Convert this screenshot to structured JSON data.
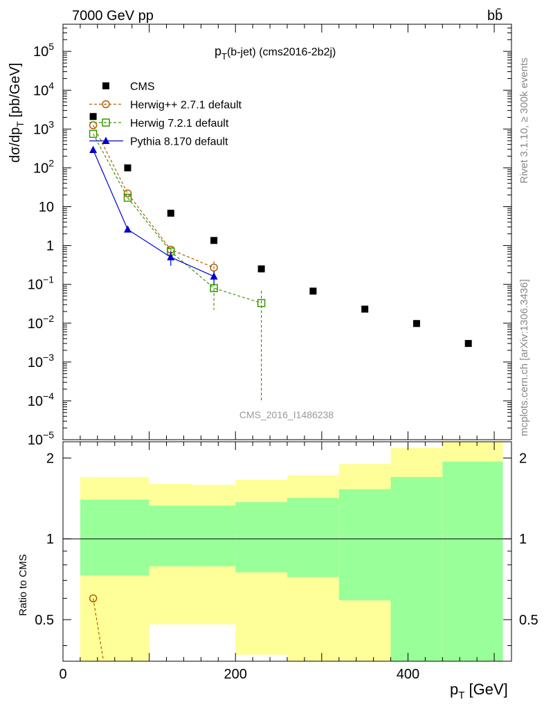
{
  "header": {
    "beam": "7000 GeV pp",
    "process": "bb̄"
  },
  "side_labels": {
    "rivet": "Rivet 3.1.10, ≥ 300k events",
    "mcplots": "mcplots.cern.ch [arXiv:1306.3436]"
  },
  "chart_data": {
    "type": "scatter",
    "title_main": "p",
    "title_sub": "T",
    "title_rest": "(b-jet) (cms2016-2b2j)",
    "watermark": "CMS_2016_I1486238",
    "xlabel_main": "p",
    "xlabel_sub": "T",
    "xlabel_rest": " [GeV]",
    "ylabel": "dσ/dp_T [pb/GeV]",
    "ylabel_main": "dσ/dp",
    "ylabel_sub": "T",
    "ylabel_rest": " [pb/GeV]",
    "ratio_ylabel": "Ratio to CMS",
    "xlim": [
      0,
      520
    ],
    "ylim": [
      1e-05,
      500000.0
    ],
    "ratio_ylim": [
      0.35,
      2.3
    ],
    "x_ticks": [
      {
        "v": 0,
        "label": "0"
      },
      {
        "v": 200,
        "label": "200"
      },
      {
        "v": 400,
        "label": "400"
      }
    ],
    "y_ticks": [
      {
        "exp": -5,
        "base": "10",
        "sup": "−5"
      },
      {
        "exp": -4,
        "base": "10",
        "sup": "−4"
      },
      {
        "exp": -3,
        "base": "10",
        "sup": "−3"
      },
      {
        "exp": -2,
        "base": "10",
        "sup": "−2"
      },
      {
        "exp": -1,
        "base": "10",
        "sup": "−1"
      },
      {
        "exp": 0,
        "base": "1",
        "sup": ""
      },
      {
        "exp": 1,
        "base": "10",
        "sup": ""
      },
      {
        "exp": 2,
        "base": "10",
        "sup": "2"
      },
      {
        "exp": 3,
        "base": "10",
        "sup": "3"
      },
      {
        "exp": 4,
        "base": "10",
        "sup": "4"
      },
      {
        "exp": 5,
        "base": "10",
        "sup": "5"
      }
    ],
    "ratio_ticks": [
      {
        "v": 0.5,
        "label": "0.5"
      },
      {
        "v": 1,
        "label": "1"
      },
      {
        "v": 2,
        "label": "2"
      }
    ],
    "series": [
      {
        "name": "CMS",
        "color": "#000000",
        "marker": "square-filled",
        "x": [
          35,
          75,
          125,
          175,
          230,
          290,
          350,
          410,
          470
        ],
        "y": [
          2100,
          100,
          6.8,
          1.35,
          0.25,
          0.067,
          0.023,
          0.0098,
          0.003
        ]
      },
      {
        "name": "Herwig++ 2.7.1 default",
        "color": "#b35c00",
        "marker": "circle-open",
        "dash": "4,3",
        "x": [
          35,
          75,
          125,
          175
        ],
        "y": [
          1250,
          22,
          0.78,
          0.27
        ],
        "err_low": [
          0,
          0,
          0,
          0.15
        ],
        "err_high": [
          0,
          0,
          0,
          0.12
        ]
      },
      {
        "name": "Herwig 7.2.1 default",
        "color": "#339900",
        "marker": "square-open",
        "dash": "4,3",
        "x": [
          35,
          75,
          125,
          175,
          230
        ],
        "y": [
          750,
          17,
          0.7,
          0.08,
          0.033
        ],
        "err_low": [
          0,
          0,
          0,
          0.058,
          0.0329
        ],
        "err_high": [
          0,
          0,
          0,
          0.06,
          0.035
        ]
      },
      {
        "name": "Pythia 8.170 default",
        "color": "#0000cc",
        "marker": "triangle-filled",
        "dash": "",
        "x": [
          35,
          75,
          125,
          175
        ],
        "y": [
          290,
          2.6,
          0.5,
          0.16
        ],
        "err_low": [
          0,
          0,
          0.2,
          0.06
        ],
        "err_high": [
          0,
          0,
          0.2,
          0.06
        ]
      }
    ],
    "ratio_bands": [
      {
        "x0": 20,
        "x1": 100,
        "y_low": 0.35,
        "y_high": 1.7,
        "g_low": 0.73,
        "g_high": 1.4
      },
      {
        "x0": 100,
        "x1": 150,
        "y_low": 0.48,
        "y_high": 1.6,
        "g_low": 0.79,
        "g_high": 1.33
      },
      {
        "x0": 150,
        "x1": 200,
        "y_low": 0.48,
        "y_high": 1.59,
        "g_low": 0.79,
        "g_high": 1.33
      },
      {
        "x0": 200,
        "x1": 260,
        "y_low": 0.37,
        "y_high": 1.66,
        "g_low": 0.75,
        "g_high": 1.37
      },
      {
        "x0": 260,
        "x1": 320,
        "y_low": 0.35,
        "y_high": 1.73,
        "g_low": 0.72,
        "g_high": 1.42
      },
      {
        "x0": 320,
        "x1": 380,
        "y_low": 0.35,
        "y_high": 1.9,
        "g_low": 0.59,
        "g_high": 1.53
      },
      {
        "x0": 380,
        "x1": 440,
        "y_low": 0.35,
        "y_high": 2.18,
        "g_low": 0.35,
        "g_high": 1.7
      },
      {
        "x0": 440,
        "x1": 510,
        "y_low": 0.35,
        "y_high": 2.3,
        "g_low": 0.35,
        "g_high": 1.94
      }
    ],
    "ratio_series": [
      {
        "name": "Herwig++ 2.7.1 default",
        "color": "#b35c00",
        "x": [
          35,
          47
        ],
        "y": [
          0.6,
          0.35
        ]
      }
    ],
    "band_colors": {
      "yellow": "#ffff99",
      "green": "#99ff99"
    }
  }
}
